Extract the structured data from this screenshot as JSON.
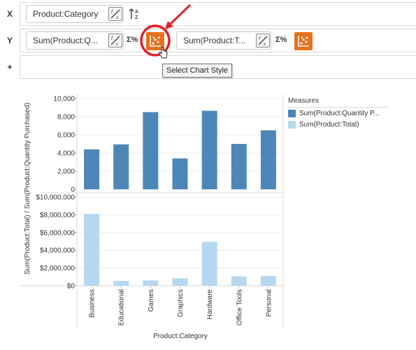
{
  "shelves": {
    "x": {
      "letter": "X",
      "pill_label": "Product:Category"
    },
    "y": {
      "letter": "Y",
      "pill1_label": "Sum(Product:Q...",
      "pill2_label": "Sum(Product:T...",
      "sigma_label": "Σ%"
    },
    "add": {
      "letter": "+"
    }
  },
  "tooltip": {
    "text": "Select Chart Style"
  },
  "colors": {
    "quantity_bar": "#4c87b8",
    "total_bar": "#b5d8f0",
    "accent": "#e8711d",
    "highlight": "#e0202a"
  },
  "chart_data": {
    "type": "bar",
    "categories": [
      "Business",
      "Educational",
      "Games",
      "Graphics",
      "Hardware",
      "Office Tools",
      "Personal"
    ],
    "series": [
      {
        "name": "Sum(Product:Quantity P...",
        "values": [
          4400,
          4950,
          8500,
          3400,
          8650,
          5000,
          6500
        ],
        "ylim": [
          0,
          10000
        ],
        "ticks": [
          0,
          2000,
          4000,
          6000,
          8000,
          10000
        ],
        "tick_labels": [
          "0",
          "2,000",
          "4,000",
          "6,000",
          "8,000",
          "10,000"
        ]
      },
      {
        "name": "Sum(Product:Total)",
        "values": [
          8100000,
          550000,
          600000,
          850000,
          4950000,
          1050000,
          1100000
        ],
        "ylim": [
          0,
          10000000
        ],
        "ticks": [
          0,
          2000000,
          4000000,
          6000000,
          8000000,
          10000000
        ],
        "tick_labels": [
          "$0",
          "$2,000,000",
          "$4,000,000",
          "$6,000,000",
          "$8,000,000",
          "$10,000,000"
        ]
      }
    ],
    "xlabel": "Product:Category",
    "ylabel": "Sum(Product:Total) / Sum(Product:Quantity Purchased)",
    "legend": {
      "title": "Measures",
      "placement": "right"
    },
    "grid": true
  }
}
